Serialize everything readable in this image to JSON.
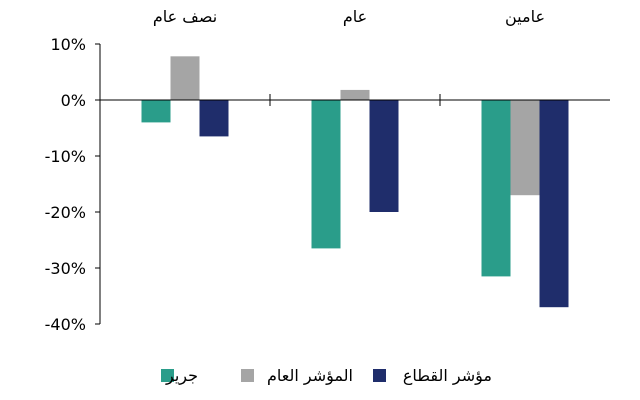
{
  "chart_data": {
    "type": "bar",
    "categories": [
      "نصف عام",
      "عام",
      "عامين"
    ],
    "series": [
      {
        "name": "جرير",
        "color": "#2a9d8a",
        "values": [
          -4,
          -26.5,
          -31.5
        ]
      },
      {
        "name": "المؤشر العام",
        "color": "#a5a5a5",
        "values": [
          7.8,
          1.8,
          -17
        ]
      },
      {
        "name": "مؤشر القطاع",
        "color": "#1f2d6b",
        "values": [
          -6.5,
          -20,
          -37
        ]
      }
    ],
    "ylim": [
      -40,
      10
    ],
    "yticks": [
      10,
      0,
      -10,
      -20,
      -30,
      -40
    ],
    "ytick_labels": [
      "10%",
      "0%",
      "-10%",
      "-20%",
      "-30%",
      "-40%"
    ],
    "grid": false,
    "legend_position": "bottom"
  }
}
